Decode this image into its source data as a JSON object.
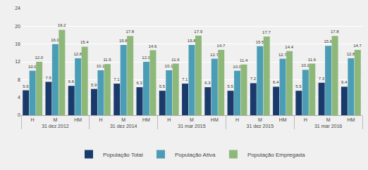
{
  "chart_data": {
    "type": "bar",
    "categories": [
      [
        "31 dez 2012",
        "H"
      ],
      [
        "31 dez 2012",
        "M"
      ],
      [
        "31 dez 2012",
        "HM"
      ],
      [
        "31 dez 2014",
        "H"
      ],
      [
        "31 dez 2014",
        "M"
      ],
      [
        "31 dez 2014",
        "HM"
      ],
      [
        "31 mar 2015",
        "H"
      ],
      [
        "31 mar 2015",
        "M"
      ],
      [
        "31 mar 2015",
        "HM"
      ],
      [
        "31 dez 2015",
        "H"
      ],
      [
        "31 dez 2015",
        "M"
      ],
      [
        "31 dez 2015",
        "HM"
      ],
      [
        "31 mar 2016",
        "H"
      ],
      [
        "31 mar 2016",
        "M"
      ],
      [
        "31 mar 2016",
        "HM"
      ]
    ],
    "series": [
      {
        "name": "População Total",
        "color": "#1a3a6b",
        "values": [
          5.6,
          7.5,
          6.6,
          5.9,
          7.1,
          6.3,
          5.5,
          7.1,
          6.3,
          5.5,
          7.2,
          6.4,
          5.5,
          7.3,
          6.4
        ]
      },
      {
        "name": "População Ativa",
        "color": "#4b9db5",
        "values": [
          10.0,
          16.0,
          12.8,
          10.1,
          15.8,
          12.0,
          10.1,
          15.8,
          12.7,
          10.0,
          15.5,
          12.7,
          10.2,
          15.6,
          12.8
        ],
        "value_labels": [
          "10.0",
          "16.0",
          "12.8",
          "10.1",
          "15.8",
          "12.0",
          "10.1",
          "15.8",
          "12.7",
          "10.0",
          "15.5",
          "12.7",
          "10.2",
          "15.6",
          "12.8"
        ]
      },
      {
        "name": "População Empregada",
        "color": "#8eb87a",
        "values": [
          12.0,
          19.2,
          15.4,
          11.5,
          17.8,
          14.6,
          11.6,
          17.9,
          14.7,
          11.4,
          17.7,
          14.4,
          11.6,
          17.8,
          14.7
        ],
        "value_labels": [
          "12.0",
          "19.2",
          "15.4",
          "11.5",
          "17.8",
          "14.6",
          "11.6",
          "17.9",
          "14.7",
          "11.4",
          "17.7",
          "14.4",
          "11.6",
          "17.8",
          "14.7"
        ]
      }
    ],
    "ylim": [
      0,
      24
    ],
    "yticks": [
      0,
      4,
      8,
      12,
      16,
      20,
      24
    ],
    "grid": true,
    "data_labels": true,
    "legend": "bottom"
  }
}
